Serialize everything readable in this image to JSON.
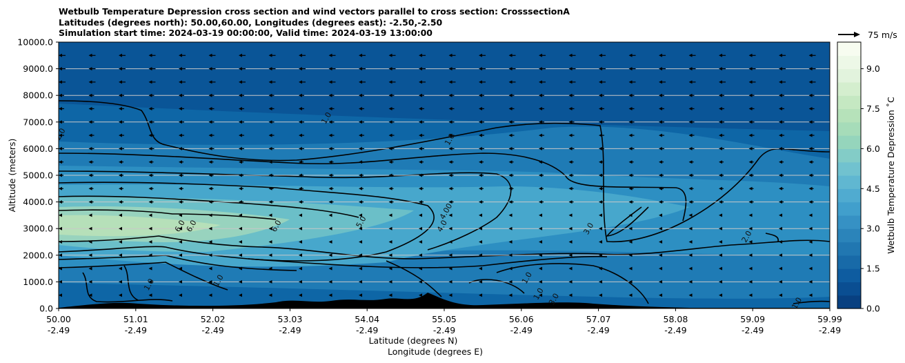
{
  "chart_data": {
    "type": "heatmap",
    "title_lines": [
      "Wetbulb Temperature Depression cross section and wind vectors parallel to cross section: CrosssectionA",
      "Latitudes (degrees north): 50.00,60.00, Longitudes (degrees east): -2.50,-2.50",
      "Simulation start time: 2024-03-19 00:00:00, Valid time: 2024-03-19 13:00:00"
    ],
    "ylabel": "Altitude (meters)",
    "xlabel_lines": [
      "Latitude (degrees N)",
      "Longitude (degrees E)"
    ],
    "ylim": [
      0,
      10000
    ],
    "y_ticks": [
      0,
      1000,
      2000,
      3000,
      4000,
      5000,
      6000,
      7000,
      8000,
      9000,
      10000
    ],
    "y_tick_labels": [
      "0.0",
      "1000.0",
      "2000.0",
      "3000.0",
      "4000.0",
      "5000.0",
      "6000.0",
      "7000.0",
      "8000.0",
      "9000.0",
      "10000.0"
    ],
    "x_ticks": [
      {
        "lat": "50.00",
        "lon": "-2.49"
      },
      {
        "lat": "51.01",
        "lon": "-2.49"
      },
      {
        "lat": "52.02",
        "lon": "-2.49"
      },
      {
        "lat": "53.03",
        "lon": "-2.49"
      },
      {
        "lat": "54.04",
        "lon": "-2.49"
      },
      {
        "lat": "55.05",
        "lon": "-2.49"
      },
      {
        "lat": "56.06",
        "lon": "-2.49"
      },
      {
        "lat": "57.07",
        "lon": "-2.49"
      },
      {
        "lat": "58.08",
        "lon": "-2.49"
      },
      {
        "lat": "59.09",
        "lon": "-2.49"
      },
      {
        "lat": "59.99",
        "lon": "-2.49"
      }
    ],
    "colorbar": {
      "label": "Wetbulb Temperature Depression ˚C",
      "range": [
        0,
        10
      ],
      "ticks": [
        0,
        1.5,
        3,
        4.5,
        6,
        7.5,
        9
      ],
      "tick_labels": [
        "0.0",
        "1.5",
        "3.0",
        "4.5",
        "6.0",
        "7.5",
        "9.0"
      ]
    },
    "quiver_key": {
      "label": "75 m/s"
    },
    "contour_labels": [
      {
        "text": "1.0",
        "x": 0.35,
        "y": 7100
      },
      {
        "text": "1.0",
        "x": 0.51,
        "y": 6300
      },
      {
        "text": "2.0",
        "x": 0.005,
        "y": 6500
      },
      {
        "text": "6.0",
        "x": 0.16,
        "y": 3050
      },
      {
        "text": "6.0",
        "x": 0.175,
        "y": 3050
      },
      {
        "text": "6.0",
        "x": 0.285,
        "y": 3050
      },
      {
        "text": "5.0",
        "x": 0.395,
        "y": 3200
      },
      {
        "text": "4.0",
        "x": 0.5,
        "y": 3050
      },
      {
        "text": "4.00",
        "x": 0.505,
        "y": 3600
      },
      {
        "text": "3.0",
        "x": 0.69,
        "y": 2950
      },
      {
        "text": "2.0",
        "x": 0.895,
        "y": 2650
      },
      {
        "text": "1.0",
        "x": 0.12,
        "y": 850
      },
      {
        "text": "1.0",
        "x": 0.21,
        "y": 1000
      },
      {
        "text": "1.0",
        "x": 0.61,
        "y": 1100
      },
      {
        "text": "1.0",
        "x": 0.625,
        "y": 500
      },
      {
        "text": "3.0",
        "x": 0.645,
        "y": 300
      },
      {
        "text": "1.0",
        "x": 0.96,
        "y": 150
      }
    ]
  }
}
